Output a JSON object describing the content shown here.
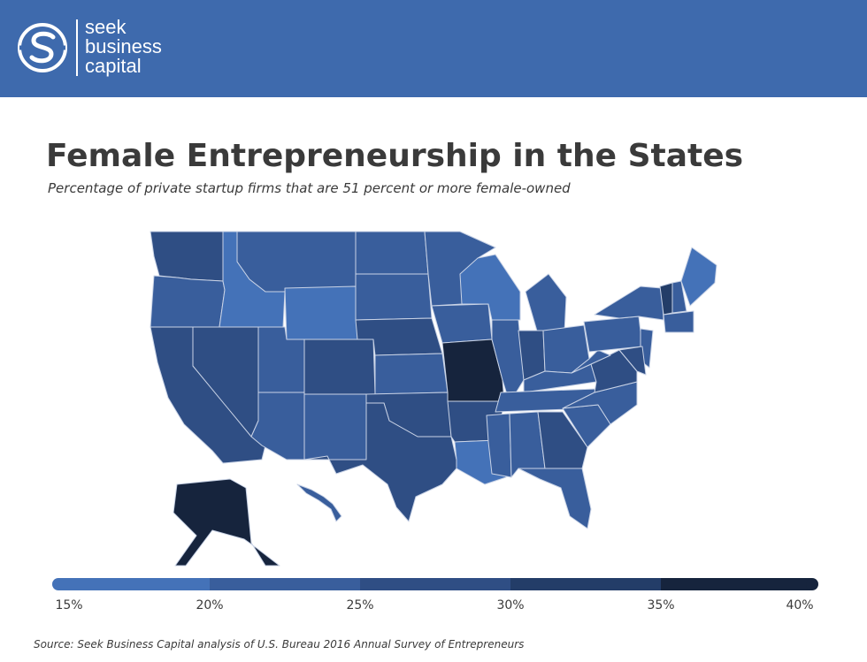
{
  "brand": {
    "name_lines": [
      "seek",
      "business",
      "capital"
    ]
  },
  "title": "Female Entrepreneurship in the States",
  "subtitle": "Percentage of private startup firms that are 51 percent or more female-owned",
  "source": "Source: Seek Business Capital analysis of U.S. Bureau  2016 Annual Survey of Entrepreneurs",
  "colors": {
    "header": "#3e6aad",
    "bin_15_20": "#4472b8",
    "bin_20_25": "#395e9c",
    "bin_25_30": "#2f4e84",
    "bin_30_35": "#233d68",
    "bin_35_40": "#16243d",
    "border": "#c9d3e6"
  },
  "legend": {
    "ticks": [
      "15%",
      "20%",
      "25%",
      "30%",
      "35%",
      "40%"
    ]
  },
  "chart_data": {
    "type": "choropleth",
    "value_bins": [
      [
        15,
        20
      ],
      [
        20,
        25
      ],
      [
        25,
        30
      ],
      [
        30,
        35
      ],
      [
        35,
        40
      ]
    ],
    "unit": "percent",
    "bin_by_state": {
      "WA": 3,
      "OR": 2,
      "CA": 3,
      "NV": 3,
      "ID": 1,
      "MT": 2,
      "WY": 1,
      "UT": 2,
      "AZ": 2,
      "CO": 3,
      "NM": 2,
      "ND": 2,
      "SD": 2,
      "NE": 3,
      "KS": 2,
      "OK": 3,
      "TX": 3,
      "MN": 2,
      "IA": 2,
      "MO": 5,
      "AR": 3,
      "LA": 1,
      "WI": 1,
      "IL": 2,
      "MI": 2,
      "IN": 3,
      "OH": 2,
      "KY": 2,
      "TN": 2,
      "MS": 2,
      "AL": 2,
      "GA": 3,
      "FL": 2,
      "SC": 2,
      "NC": 2,
      "VA": 3,
      "WV": 2,
      "PA": 2,
      "NY": 2,
      "VT": 4,
      "NH": 2,
      "ME": 1,
      "MA": 2,
      "NJ": 2,
      "MD": 3,
      "AK": 5,
      "HI": 2
    }
  }
}
